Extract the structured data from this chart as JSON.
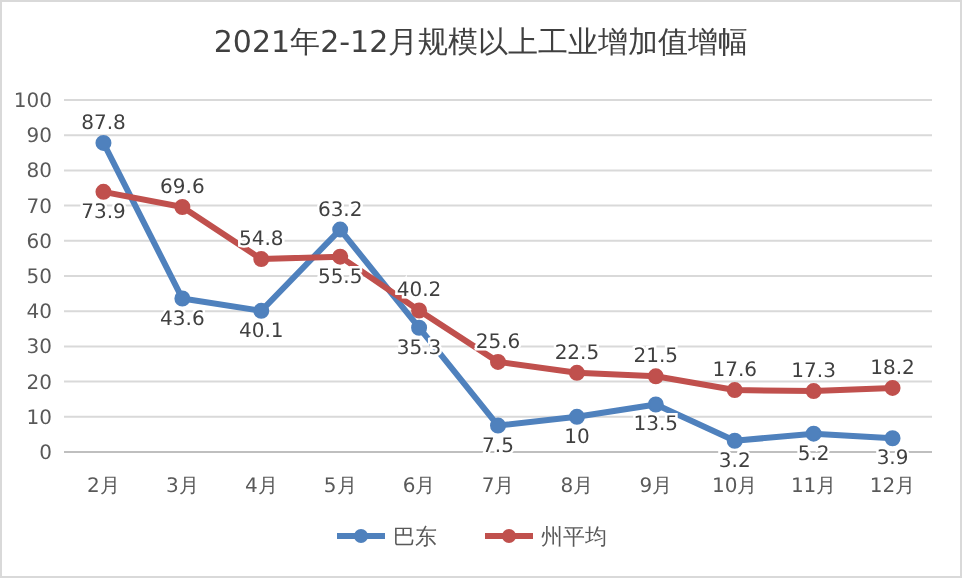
{
  "chart_data": {
    "type": "line",
    "title": "2021年2-12月规模以上工业增加值增幅",
    "categories": [
      "2月",
      "3月",
      "4月",
      "5月",
      "6月",
      "7月",
      "8月",
      "9月",
      "10月",
      "11月",
      "12月"
    ],
    "series": [
      {
        "name": "巴东",
        "color": "#4f81bd",
        "values": [
          87.8,
          43.6,
          40.1,
          63.2,
          35.3,
          7.5,
          10,
          13.5,
          3.2,
          5.2,
          3.9
        ]
      },
      {
        "name": "州平均",
        "color": "#c0504d",
        "values": [
          73.9,
          69.6,
          54.8,
          55.5,
          40.2,
          25.6,
          22.5,
          21.5,
          17.6,
          17.3,
          18.2
        ]
      }
    ],
    "ylim": [
      0,
      100
    ],
    "yticks": [
      0,
      10,
      20,
      30,
      40,
      50,
      60,
      70,
      80,
      90,
      100
    ],
    "grid": "y",
    "legend": "bottom",
    "marker": "circle",
    "line_style": "solid",
    "data_labels": true
  }
}
